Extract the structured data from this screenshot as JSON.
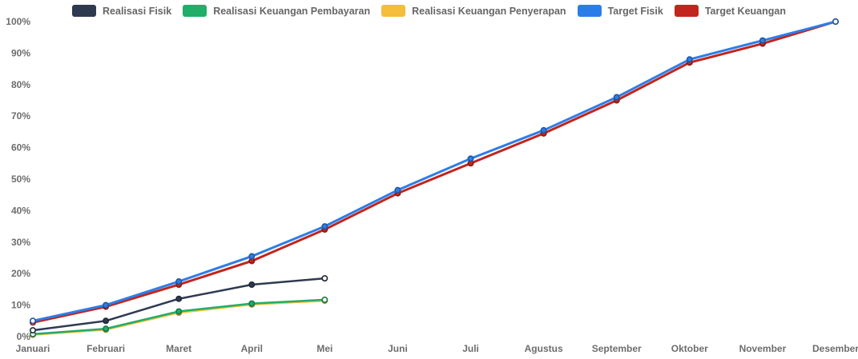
{
  "chart_data": {
    "type": "line",
    "categories": [
      "Januari",
      "Februari",
      "Maret",
      "April",
      "Mei",
      "Juni",
      "Juli",
      "Agustus",
      "September",
      "Oktober",
      "November",
      "Desember"
    ],
    "series": [
      {
        "name": "Realisasi Fisik",
        "color": "#2e3a50",
        "line_width": 2.5,
        "values": [
          2,
          5,
          12,
          16.5,
          18.5
        ]
      },
      {
        "name": "Realisasi Keuangan Pembayaran",
        "color": "#22ad68",
        "line_width": 2.5,
        "values": [
          0.8,
          2.5,
          8,
          10.5,
          11.7
        ]
      },
      {
        "name": "Realisasi Keuangan Penyerapan",
        "color": "#f4bd3a",
        "line_width": 2.5,
        "values": [
          0.6,
          2.2,
          7.6,
          10.2,
          11.4
        ]
      },
      {
        "name": "Target Fisik",
        "color": "#2d7de9",
        "line_width": 3,
        "values": [
          5,
          10,
          17.5,
          25.5,
          35,
          46.5,
          56.5,
          65.5,
          76,
          88,
          94,
          100
        ]
      },
      {
        "name": "Target Keuangan",
        "color": "#c1251d",
        "line_width": 3,
        "values": [
          4.5,
          9.5,
          16.5,
          24,
          34,
          45.5,
          55,
          64.5,
          75,
          87,
          93,
          100
        ]
      }
    ],
    "title": "",
    "xlabel": "",
    "ylabel": "",
    "ylim": [
      0,
      100
    ],
    "y_tick_labels": [
      "0%",
      "10%",
      "20%",
      "30%",
      "40%",
      "50%",
      "60%",
      "70%",
      "80%",
      "90%",
      "100%"
    ],
    "grid": false,
    "legend_position": "top",
    "marker": "circle",
    "text_color": "#6d6d6d",
    "legend_text_color": "#666666",
    "background": "#ffffff"
  }
}
